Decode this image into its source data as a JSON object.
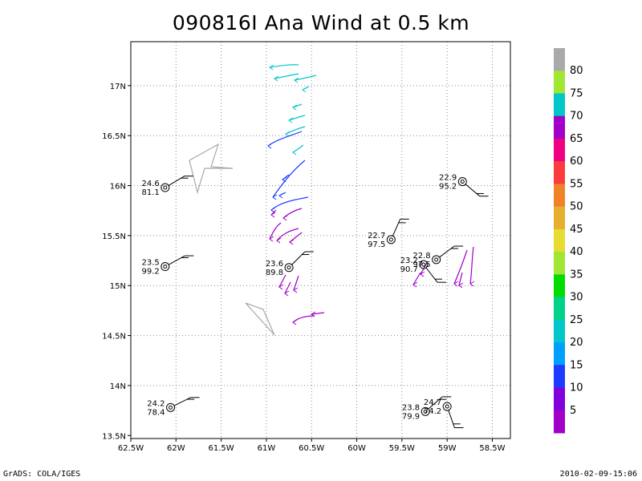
{
  "chart_data": {
    "type": "wind-barb-map",
    "title": "090816I Ana Wind at 0.5 km",
    "x_axis": {
      "lim": [
        -62.5,
        -58.3
      ],
      "ticks": [
        -62.5,
        -62,
        -61.5,
        -61,
        -60.5,
        -60,
        -59.5,
        -59,
        -58.5
      ],
      "tick_labels": [
        "62.5W",
        "62W",
        "61.5W",
        "61W",
        "60.5W",
        "60W",
        "59.5W",
        "59W",
        "58.5W"
      ]
    },
    "y_axis": {
      "lim": [
        13.47,
        17.44
      ],
      "ticks": [
        13.5,
        14,
        14.5,
        15,
        15.5,
        16,
        16.5,
        17
      ],
      "tick_labels": [
        "13.5N",
        "14N",
        "14.5N",
        "15N",
        "15.5N",
        "16N",
        "16.5N",
        "17N"
      ]
    },
    "grid": "dotted",
    "stations": [
      {
        "lon": -62.12,
        "lat": 15.98,
        "temp": "24.6",
        "value": "81.1"
      },
      {
        "lon": -62.12,
        "lat": 15.19,
        "temp": "23.5",
        "value": "99.2"
      },
      {
        "lon": -62.06,
        "lat": 13.78,
        "temp": "24.2",
        "value": "78.4"
      },
      {
        "lon": -60.75,
        "lat": 15.18,
        "temp": "23.6",
        "value": "89.8"
      },
      {
        "lon": -59.62,
        "lat": 15.46,
        "temp": "22.7",
        "value": "97.5"
      },
      {
        "lon": -59.26,
        "lat": 15.21,
        "temp": "23.2",
        "value": "90.7"
      },
      {
        "lon": -59.12,
        "lat": 15.26,
        "temp": "22.8",
        "value": "97.5"
      },
      {
        "lon": -58.83,
        "lat": 16.04,
        "temp": "22.9",
        "value": "95.2"
      },
      {
        "lon": -59.24,
        "lat": 13.74,
        "temp": "23.8",
        "value": "79.9"
      },
      {
        "lon": -59.0,
        "lat": 13.79,
        "temp": "24.7",
        "value": "74.2"
      }
    ],
    "colorbar": {
      "labels": [
        "5",
        "10",
        "15",
        "20",
        "25",
        "30",
        "35",
        "40",
        "45",
        "50",
        "55",
        "60",
        "65",
        "70",
        "75",
        "80"
      ],
      "colors": [
        "#a000c8",
        "#8200dc",
        "#1e3cff",
        "#00a0ff",
        "#00c8c8",
        "#00d28c",
        "#00dc00",
        "#a0e632",
        "#e6dc32",
        "#e6af2d",
        "#f08228",
        "#fa3c3c",
        "#f00082",
        "#a000c8",
        "#00c8c8",
        "#a0e632",
        "#aaaaaa"
      ]
    }
  },
  "footer": {
    "left": "GrADS: COLA/IGES",
    "right": "2010-02-09-15:06"
  }
}
